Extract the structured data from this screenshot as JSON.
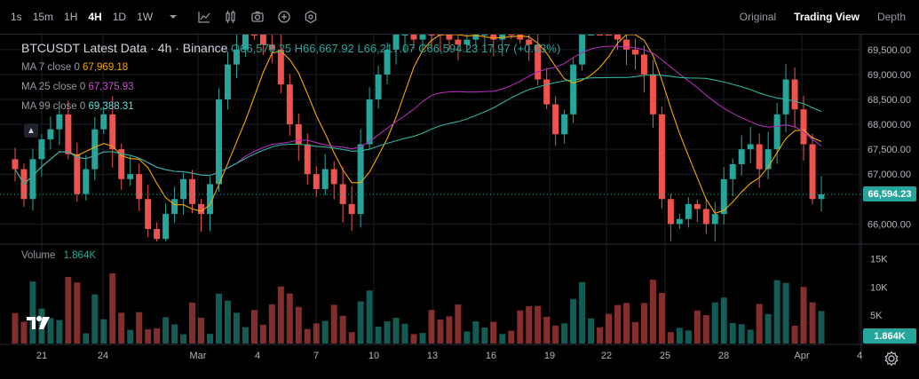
{
  "toolbar": {
    "timeframes": [
      "1s",
      "15m",
      "1H",
      "4H",
      "1D",
      "1W"
    ],
    "active_timeframe": "4H",
    "icons": [
      "chevron-down-icon",
      "candles-icon",
      "indicators-icon",
      "camera-icon",
      "add-icon",
      "settings-hex-icon"
    ],
    "views": [
      "Original",
      "Trading View",
      "Depth"
    ],
    "active_view": "Trading View"
  },
  "legend": {
    "title": "BTCUSDT Latest Data · 4h · Binance",
    "open": "O66,576.25",
    "high": "H66,667.92",
    "low": "L66,217.07",
    "close": "C66,594.23",
    "change": "17.97 (+0.03%)",
    "ma7_label": "MA 7 close 0",
    "ma7_value": "67,969.18",
    "ma25_label": "MA 25 close 0",
    "ma25_value": "67,375.93",
    "ma99_label": "MA 99 close 0",
    "ma99_value": "69,388.31",
    "volume_label": "Volume",
    "volume_value": "1.864K"
  },
  "price_axis": [
    "69,500.00",
    "69,000.00",
    "68,500.00",
    "68,000.00",
    "67,500.00",
    "67,000.00",
    "66,000.00"
  ],
  "current_price": "66,594.23",
  "volume_axis": [
    "15K",
    "10K",
    "5K"
  ],
  "current_volume": "1.864K",
  "time_axis": [
    "21",
    "24",
    "Mar",
    "4",
    "7",
    "10",
    "13",
    "16",
    "19",
    "22",
    "25",
    "28",
    "Apr",
    "4"
  ],
  "colors": {
    "up": "#26a69a",
    "down": "#ef5350",
    "ma7": "#f7a600",
    "ma25": "#b02bb8",
    "ma99": "#2bb39b"
  },
  "chart_data": {
    "type": "candlestick",
    "ylim": [
      65650,
      69800
    ],
    "close_series": [
      67100,
      66500,
      67300,
      67700,
      67900,
      68200,
      67400,
      66600,
      67100,
      67900,
      68200,
      67500,
      66900,
      67000,
      66500,
      65900,
      65700,
      66200,
      66500,
      66900,
      66400,
      66200,
      66800,
      68500,
      69200,
      69500,
      69900,
      69800,
      69600,
      69500,
      68800,
      68000,
      67600,
      67000,
      66700,
      67100,
      66800,
      66400,
      66200,
      67600,
      68500,
      69000,
      69500,
      69800,
      69900,
      69700,
      70000,
      69900,
      69800,
      69700,
      69600,
      69700,
      69800,
      69800,
      69700,
      69900,
      69800,
      69700,
      69600,
      68900,
      68400,
      67800,
      68200,
      69200,
      70100,
      70300,
      70000,
      69900,
      69700,
      69500,
      69400,
      69000,
      68200,
      66500,
      66000,
      66100,
      66400,
      66300,
      66000,
      66200,
      66900,
      67200,
      67500,
      67600,
      67100,
      67500,
      68200,
      68900,
      68300,
      67600,
      66500,
      66594
    ]
  }
}
